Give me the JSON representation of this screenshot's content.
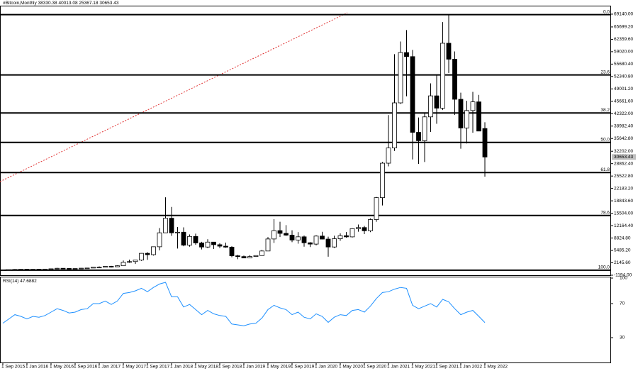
{
  "chart_data": {
    "type": "candlestick",
    "title": "#Bitcoin,Monthly",
    "categories": [
      "1 Sep 2015",
      null,
      null,
      null,
      "1 Jan 2016",
      null,
      null,
      null,
      "1 May 2016",
      null,
      null,
      null,
      "1 Sep 2016",
      null,
      null,
      null,
      "1 Jan 2017",
      null,
      null,
      null,
      "1 May 2017",
      null,
      null,
      null,
      "1 Sep 2017",
      null,
      null,
      null,
      "1 Jan 2018",
      null,
      null,
      null,
      "1 May 2018",
      null,
      null,
      null,
      "1 Sep 2018",
      null,
      null,
      null,
      "1 Jan 2019",
      null,
      null,
      null,
      "1 May 2019",
      null,
      null,
      null,
      "1 Sep 2019",
      null,
      null,
      null,
      "1 Jan 2020",
      null,
      null,
      null,
      "1 May 2020",
      null,
      null,
      null,
      "1 Sep 2020",
      null,
      null,
      null,
      "1 Jan 2021",
      null,
      null,
      null,
      "1 May 2021",
      null,
      null,
      null,
      "1 Sep 2021",
      null,
      null,
      null,
      "1 Jan 2022",
      null,
      null,
      null,
      "1 May 2022"
    ],
    "open": [
      230,
      236,
      314,
      378,
      430,
      369,
      437,
      416,
      448,
      531,
      673,
      624,
      575,
      609,
      698,
      743,
      964,
      970,
      1190,
      1080,
      1350,
      2290,
      2480,
      2880,
      4700,
      4340,
      6470,
      10230,
      14160,
      10220,
      10400,
      6900,
      9250,
      7500,
      6400,
      7730,
      7030,
      6630,
      6370,
      4040,
      3830,
      3450,
      3850,
      4100,
      5330,
      8570,
      10820,
      10080,
      9600,
      8290,
      9150,
      7550,
      7190,
      9350,
      8540,
      6410,
      8630,
      9450,
      9140,
      11350,
      11650,
      10780,
      13800,
      19700,
      28990,
      33100,
      45240,
      58800,
      57700,
      37300,
      35040,
      41460,
      47130,
      43820,
      61300,
      57000,
      46200,
      38480,
      43170,
      45510,
      38330.38
    ],
    "high": [
      243,
      330,
      496,
      465,
      462,
      445,
      439,
      467,
      550,
      780,
      704,
      626,
      630,
      732,
      760,
      982,
      1190,
      1200,
      1340,
      1450,
      2760,
      3000,
      2920,
      4750,
      5000,
      6480,
      11500,
      19800,
      17200,
      11800,
      11700,
      9800,
      10000,
      7800,
      8500,
      7770,
      7410,
      7600,
      6620,
      4300,
      4100,
      4200,
      4150,
      5600,
      9100,
      13900,
      13200,
      12300,
      10900,
      10400,
      9500,
      7700,
      9580,
      10500,
      9180,
      9450,
      10080,
      10430,
      11450,
      12470,
      12090,
      14100,
      19900,
      29300,
      41950,
      58350,
      61780,
      64850,
      59500,
      41300,
      42400,
      50500,
      52900,
      67000,
      69000,
      59100,
      47990,
      45800,
      48200,
      47400,
      40013.08
    ],
    "low": [
      225,
      236,
      300,
      350,
      350,
      365,
      395,
      412,
      437,
      520,
      610,
      470,
      570,
      606,
      683,
      740,
      750,
      920,
      890,
      1070,
      1350,
      2120,
      1830,
      2670,
      2950,
      4110,
      5510,
      10200,
      9400,
      6000,
      6600,
      6500,
      7000,
      5750,
      6100,
      5880,
      6100,
      6200,
      3650,
      3130,
      3400,
      3400,
      3730,
      4100,
      5330,
      7500,
      9100,
      9400,
      7700,
      7300,
      6500,
      6400,
      6850,
      8460,
      3800,
      6150,
      8100,
      8900,
      8970,
      10530,
      9880,
      10400,
      13200,
      17600,
      28130,
      32300,
      44950,
      47000,
      30000,
      28800,
      29300,
      37400,
      39600,
      43300,
      53300,
      42000,
      32900,
      34300,
      37200,
      37600,
      25367.18
    ],
    "close": [
      236,
      314,
      378,
      430,
      369,
      437,
      416,
      448,
      531,
      673,
      624,
      575,
      609,
      698,
      743,
      964,
      970,
      1190,
      1080,
      1350,
      2290,
      2480,
      2880,
      4700,
      4340,
      6470,
      10230,
      14160,
      10220,
      10400,
      6900,
      9250,
      7500,
      6400,
      7730,
      7030,
      6630,
      6370,
      4040,
      3830,
      3450,
      3850,
      4100,
      5330,
      8570,
      10820,
      10080,
      9600,
      8290,
      9150,
      7550,
      7190,
      9350,
      8540,
      6410,
      8630,
      9450,
      9140,
      11350,
      11650,
      10780,
      13800,
      19700,
      28990,
      33100,
      45240,
      58800,
      57700,
      37300,
      35040,
      41460,
      47130,
      43820,
      61300,
      57000,
      46200,
      38480,
      43170,
      45510,
      37640,
      30653.43
    ],
    "up_color": "#ffffff",
    "down_color": "#000000",
    "ylim": [
      -1200,
      71040
    ],
    "yticks": [
      {
        "value": 69140,
        "label": "69140.00"
      },
      {
        "value": 65699.2,
        "label": "65699.20"
      },
      {
        "value": 62359.6,
        "label": "62359.60"
      },
      {
        "value": 59020,
        "label": "59020.00"
      },
      {
        "value": 55680.4,
        "label": "55680.40"
      },
      {
        "value": 52340.8,
        "label": "52340.80"
      },
      {
        "value": 49001.2,
        "label": "49001.20"
      },
      {
        "value": 45661.6,
        "label": "45661.60"
      },
      {
        "value": 42322,
        "label": "42322.00"
      },
      {
        "value": 38982.4,
        "label": "38982.40"
      },
      {
        "value": 35642.8,
        "label": "35642.80"
      },
      {
        "value": 32202,
        "label": "32202.00"
      },
      {
        "value": 28862.4,
        "label": "28862.40"
      },
      {
        "value": 25522.8,
        "label": "25522.80"
      },
      {
        "value": 22183.2,
        "label": "22183.20"
      },
      {
        "value": 18843.6,
        "label": "18843.60"
      },
      {
        "value": 15504,
        "label": "15504.00"
      },
      {
        "value": 12164.4,
        "label": "12164.40"
      },
      {
        "value": 8824.8,
        "label": "8824.80"
      },
      {
        "value": 5485.2,
        "label": "5485.20"
      },
      {
        "value": 2145.6,
        "label": "2145.60"
      },
      {
        "value": -1194,
        "label": "-1194.00"
      }
    ],
    "fib_levels": [
      {
        "label": "0.0",
        "price": 69000
      },
      {
        "label": "23.6",
        "price": 52755
      },
      {
        "label": "38.2",
        "price": 42505
      },
      {
        "label": "50.0",
        "price": 34583
      },
      {
        "label": "61.8",
        "price": 26460
      },
      {
        "label": "78.6",
        "price": 14896
      },
      {
        "label": "100.0",
        "price": 165
      }
    ],
    "rsi": {
      "name": "RSI(14)",
      "color": "#1e90ff",
      "ylim": [
        0,
        100
      ],
      "yticks": [
        30,
        70,
        100
      ],
      "values": [
        47,
        52,
        57,
        55,
        52,
        55,
        54,
        56,
        60,
        64,
        62,
        59,
        60,
        63,
        64,
        70,
        70,
        73,
        69,
        73,
        82,
        83,
        85,
        88,
        84,
        89,
        93,
        95,
        78,
        78,
        66,
        69,
        63,
        57,
        62,
        58,
        56,
        55,
        46,
        45,
        44,
        46,
        47,
        53,
        63,
        68,
        65,
        63,
        57,
        60,
        54,
        52,
        58,
        55,
        48,
        54,
        57,
        56,
        62,
        63,
        60,
        67,
        76,
        83,
        84,
        87,
        89,
        88,
        68,
        64,
        67,
        70,
        66,
        75,
        72,
        64,
        57,
        60,
        62,
        55,
        47.6882
      ]
    }
  }
}
